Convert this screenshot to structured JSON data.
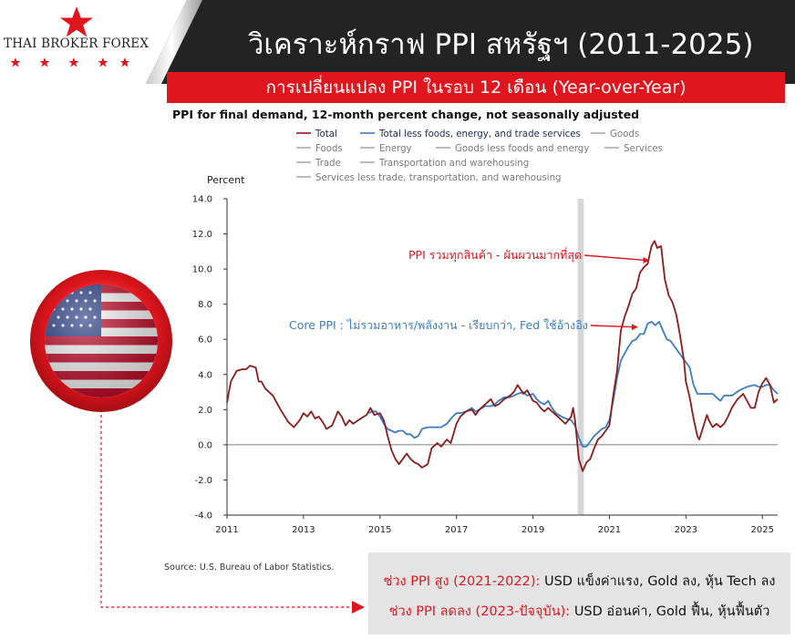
{
  "header": {
    "brand": "THAI BROKER FOREX",
    "title": "วิเคราะห์กราฟ PPI สหรัฐฯ (2011-2025)",
    "subtitle": "การเปลี่ยนแปลง PPI ในรอบ 12 เดือน (Year-over-Year)",
    "star_color": "#e0161e"
  },
  "icons": {
    "logo": "star-logo-icon",
    "flag": "us-flag-icon",
    "arrow": "arrow-right-icon"
  },
  "chart_data": {
    "type": "line",
    "title": "PPI for final demand, 12-month percent change, not seasonally adjusted",
    "ylabel": "Percent",
    "ylim": [
      -4.0,
      14.0
    ],
    "yticks": [
      "14.0",
      "12.0",
      "10.0",
      "8.0",
      "6.0",
      "4.0",
      "2.0",
      "0.0",
      "-2.0",
      "-4.0"
    ],
    "xlim": [
      2011.0,
      2025.4
    ],
    "xticks": [
      "2011",
      "2013",
      "2015",
      "2017",
      "2019",
      "2021",
      "2023",
      "2025"
    ],
    "recession_shade": [
      2020.17,
      2020.33
    ],
    "grid": false,
    "legend": [
      {
        "name": "Total",
        "color": "#8b1c1c"
      },
      {
        "name": "Total less foods, energy, and trade services",
        "color": "#3b7dc4"
      },
      {
        "name": "Goods",
        "color": "#aaaaaa"
      },
      {
        "name": "Foods",
        "color": "#aaaaaa"
      },
      {
        "name": "Energy",
        "color": "#aaaaaa"
      },
      {
        "name": "Goods less foods and energy",
        "color": "#aaaaaa"
      },
      {
        "name": "Services",
        "color": "#aaaaaa"
      },
      {
        "name": "Trade",
        "color": "#aaaaaa"
      },
      {
        "name": "Transportation and warehousing",
        "color": "#aaaaaa"
      },
      {
        "name": "Services less trade, transportation, and warehousing",
        "color": "#aaaaaa"
      }
    ],
    "series": [
      {
        "name": "Total",
        "color": "#8b1c1c",
        "points": [
          [
            2011.0,
            2.4
          ],
          [
            2011.1,
            3.6
          ],
          [
            2011.25,
            4.2
          ],
          [
            2011.4,
            4.3
          ],
          [
            2011.5,
            4.3
          ],
          [
            2011.6,
            4.5
          ],
          [
            2011.75,
            4.4
          ],
          [
            2011.83,
            3.6
          ],
          [
            2011.9,
            3.6
          ],
          [
            2012.0,
            3.2
          ],
          [
            2012.2,
            2.8
          ],
          [
            2012.4,
            2.0
          ],
          [
            2012.6,
            1.3
          ],
          [
            2012.75,
            1.0
          ],
          [
            2012.9,
            1.4
          ],
          [
            2013.0,
            1.8
          ],
          [
            2013.1,
            1.6
          ],
          [
            2013.2,
            1.9
          ],
          [
            2013.3,
            1.5
          ],
          [
            2013.4,
            1.6
          ],
          [
            2013.5,
            1.3
          ],
          [
            2013.6,
            0.9
          ],
          [
            2013.75,
            1.1
          ],
          [
            2013.9,
            1.9
          ],
          [
            2014.0,
            1.6
          ],
          [
            2014.1,
            1.1
          ],
          [
            2014.2,
            1.4
          ],
          [
            2014.3,
            1.2
          ],
          [
            2014.5,
            1.5
          ],
          [
            2014.65,
            1.7
          ],
          [
            2014.75,
            2.1
          ],
          [
            2014.85,
            1.7
          ],
          [
            2015.0,
            1.8
          ],
          [
            2015.1,
            1.4
          ],
          [
            2015.2,
            0.5
          ],
          [
            2015.3,
            -0.3
          ],
          [
            2015.4,
            -0.8
          ],
          [
            2015.5,
            -1.1
          ],
          [
            2015.6,
            -0.8
          ],
          [
            2015.7,
            -0.5
          ],
          [
            2015.8,
            -0.8
          ],
          [
            2015.9,
            -1.0
          ],
          [
            2016.0,
            -1.1
          ],
          [
            2016.1,
            -1.3
          ],
          [
            2016.25,
            -1.1
          ],
          [
            2016.35,
            -0.2
          ],
          [
            2016.5,
            0.1
          ],
          [
            2016.6,
            -0.1
          ],
          [
            2016.75,
            0.3
          ],
          [
            2016.85,
            0.1
          ],
          [
            2017.0,
            1.2
          ],
          [
            2017.1,
            1.6
          ],
          [
            2017.25,
            1.9
          ],
          [
            2017.4,
            2.0
          ],
          [
            2017.5,
            1.7
          ],
          [
            2017.6,
            2.0
          ],
          [
            2017.75,
            2.3
          ],
          [
            2017.9,
            2.6
          ],
          [
            2018.0,
            2.2
          ],
          [
            2018.1,
            2.3
          ],
          [
            2018.25,
            2.6
          ],
          [
            2018.4,
            2.8
          ],
          [
            2018.5,
            3.0
          ],
          [
            2018.6,
            3.4
          ],
          [
            2018.75,
            2.9
          ],
          [
            2018.85,
            3.1
          ],
          [
            2019.0,
            2.5
          ],
          [
            2019.1,
            2.4
          ],
          [
            2019.2,
            2.1
          ],
          [
            2019.3,
            1.9
          ],
          [
            2019.4,
            2.1
          ],
          [
            2019.5,
            1.9
          ],
          [
            2019.6,
            1.7
          ],
          [
            2019.75,
            1.4
          ],
          [
            2019.85,
            1.2
          ],
          [
            2020.0,
            1.6
          ],
          [
            2020.05,
            2.1
          ],
          [
            2020.1,
            1.4
          ],
          [
            2020.2,
            -0.8
          ],
          [
            2020.3,
            -1.5
          ],
          [
            2020.4,
            -1.0
          ],
          [
            2020.5,
            -0.8
          ],
          [
            2020.6,
            -0.2
          ],
          [
            2020.7,
            0.3
          ],
          [
            2020.8,
            0.5
          ],
          [
            2020.9,
            0.8
          ],
          [
            2021.0,
            1.1
          ],
          [
            2021.1,
            2.8
          ],
          [
            2021.2,
            4.2
          ],
          [
            2021.3,
            6.5
          ],
          [
            2021.4,
            7.3
          ],
          [
            2021.5,
            7.9
          ],
          [
            2021.6,
            8.6
          ],
          [
            2021.7,
            8.9
          ],
          [
            2021.8,
            9.8
          ],
          [
            2021.9,
            10.1
          ],
          [
            2022.0,
            10.3
          ],
          [
            2022.1,
            11.3
          ],
          [
            2022.18,
            11.6
          ],
          [
            2022.25,
            11.2
          ],
          [
            2022.35,
            11.3
          ],
          [
            2022.45,
            9.4
          ],
          [
            2022.55,
            8.5
          ],
          [
            2022.65,
            8.1
          ],
          [
            2022.75,
            7.4
          ],
          [
            2022.85,
            6.2
          ],
          [
            2022.95,
            4.8
          ],
          [
            2023.0,
            3.6
          ],
          [
            2023.1,
            2.7
          ],
          [
            2023.2,
            1.5
          ],
          [
            2023.3,
            0.5
          ],
          [
            2023.35,
            0.3
          ],
          [
            2023.45,
            1.0
          ],
          [
            2023.55,
            1.7
          ],
          [
            2023.6,
            1.4
          ],
          [
            2023.7,
            1.0
          ],
          [
            2023.8,
            1.2
          ],
          [
            2023.9,
            1.0
          ],
          [
            2024.0,
            1.2
          ],
          [
            2024.1,
            1.6
          ],
          [
            2024.2,
            2.1
          ],
          [
            2024.35,
            2.6
          ],
          [
            2024.5,
            2.9
          ],
          [
            2024.6,
            2.5
          ],
          [
            2024.7,
            2.1
          ],
          [
            2024.8,
            2.1
          ],
          [
            2024.9,
            3.0
          ],
          [
            2025.0,
            3.5
          ],
          [
            2025.1,
            3.8
          ],
          [
            2025.2,
            3.4
          ],
          [
            2025.3,
            2.4
          ],
          [
            2025.4,
            2.6
          ]
        ]
      },
      {
        "name": "Total less foods, energy, and trade services",
        "color": "#3b7dc4",
        "points": [
          [
            2014.7,
            1.8
          ],
          [
            2014.8,
            1.9
          ],
          [
            2014.9,
            1.9
          ],
          [
            2015.0,
            1.6
          ],
          [
            2015.1,
            1.2
          ],
          [
            2015.2,
            0.9
          ],
          [
            2015.3,
            0.8
          ],
          [
            2015.4,
            0.7
          ],
          [
            2015.5,
            0.8
          ],
          [
            2015.6,
            0.8
          ],
          [
            2015.7,
            0.6
          ],
          [
            2015.8,
            0.6
          ],
          [
            2015.9,
            0.4
          ],
          [
            2016.0,
            0.5
          ],
          [
            2016.1,
            0.9
          ],
          [
            2016.25,
            1.0
          ],
          [
            2016.4,
            1.0
          ],
          [
            2016.6,
            1.0
          ],
          [
            2016.75,
            1.2
          ],
          [
            2016.9,
            1.6
          ],
          [
            2017.0,
            1.8
          ],
          [
            2017.1,
            1.8
          ],
          [
            2017.25,
            1.9
          ],
          [
            2017.4,
            2.1
          ],
          [
            2017.5,
            1.9
          ],
          [
            2017.6,
            2.0
          ],
          [
            2017.75,
            2.2
          ],
          [
            2017.9,
            2.2
          ],
          [
            2018.0,
            2.3
          ],
          [
            2018.1,
            2.5
          ],
          [
            2018.25,
            2.7
          ],
          [
            2018.4,
            2.7
          ],
          [
            2018.5,
            2.8
          ],
          [
            2018.6,
            2.9
          ],
          [
            2018.75,
            3.0
          ],
          [
            2018.85,
            2.8
          ],
          [
            2019.0,
            2.9
          ],
          [
            2019.1,
            2.6
          ],
          [
            2019.2,
            2.4
          ],
          [
            2019.3,
            2.3
          ],
          [
            2019.4,
            2.5
          ],
          [
            2019.5,
            2.1
          ],
          [
            2019.6,
            1.8
          ],
          [
            2019.75,
            1.6
          ],
          [
            2019.85,
            1.5
          ],
          [
            2020.0,
            1.4
          ],
          [
            2020.1,
            1.1
          ],
          [
            2020.2,
            0.4
          ],
          [
            2020.3,
            -0.1
          ],
          [
            2020.4,
            -0.1
          ],
          [
            2020.5,
            0.2
          ],
          [
            2020.6,
            0.5
          ],
          [
            2020.7,
            0.7
          ],
          [
            2020.8,
            0.9
          ],
          [
            2020.9,
            1.0
          ],
          [
            2021.0,
            1.4
          ],
          [
            2021.1,
            2.5
          ],
          [
            2021.2,
            3.8
          ],
          [
            2021.3,
            4.8
          ],
          [
            2021.4,
            5.2
          ],
          [
            2021.5,
            5.6
          ],
          [
            2021.6,
            5.9
          ],
          [
            2021.7,
            6.0
          ],
          [
            2021.8,
            6.3
          ],
          [
            2021.9,
            6.3
          ],
          [
            2022.0,
            6.9
          ],
          [
            2022.1,
            7.0
          ],
          [
            2022.2,
            6.8
          ],
          [
            2022.3,
            7.0
          ],
          [
            2022.4,
            6.5
          ],
          [
            2022.5,
            6.0
          ],
          [
            2022.6,
            5.9
          ],
          [
            2022.7,
            5.6
          ],
          [
            2022.8,
            5.3
          ],
          [
            2022.9,
            5.0
          ],
          [
            2023.0,
            4.7
          ],
          [
            2023.1,
            4.4
          ],
          [
            2023.2,
            3.4
          ],
          [
            2023.3,
            2.9
          ],
          [
            2023.5,
            2.9
          ],
          [
            2023.7,
            2.9
          ],
          [
            2023.9,
            2.5
          ],
          [
            2024.0,
            2.8
          ],
          [
            2024.2,
            2.8
          ],
          [
            2024.4,
            3.1
          ],
          [
            2024.6,
            3.3
          ],
          [
            2024.8,
            3.4
          ],
          [
            2024.9,
            3.3
          ],
          [
            2025.0,
            3.3
          ],
          [
            2025.1,
            3.4
          ],
          [
            2025.2,
            3.4
          ],
          [
            2025.3,
            3.1
          ],
          [
            2025.4,
            2.9
          ]
        ]
      }
    ],
    "annotations": [
      {
        "text": "PPI รวมทุกสินค้า - ผันผวนมากที่สุด",
        "color": "#e0161e",
        "target": [
          2022.05,
          10.5
        ]
      },
      {
        "text": "Core PPI : ไม่รวมอาหาร/พลังงาน - เรียบกว่า, Fed ใช้อ้างอิง",
        "color": "#3b7dc4",
        "target": [
          2021.75,
          6.7
        ]
      }
    ]
  },
  "source": "Source: U.S. Bureau of Labor Statistics.",
  "info": {
    "line1_highlight": "ช่วง PPI สูง (2021-2022):",
    "line1_text": "USD แข็งค่าแรง, Gold ลง, หุ้น Tech ลง",
    "line2_highlight": "ช่วง PPI ลดลง (2023-ปัจจุบัน):",
    "line2_text": "USD อ่อนค่า, Gold ฟื้น, หุ้นฟื้นตัว",
    "highlight_color": "#e0161e"
  }
}
